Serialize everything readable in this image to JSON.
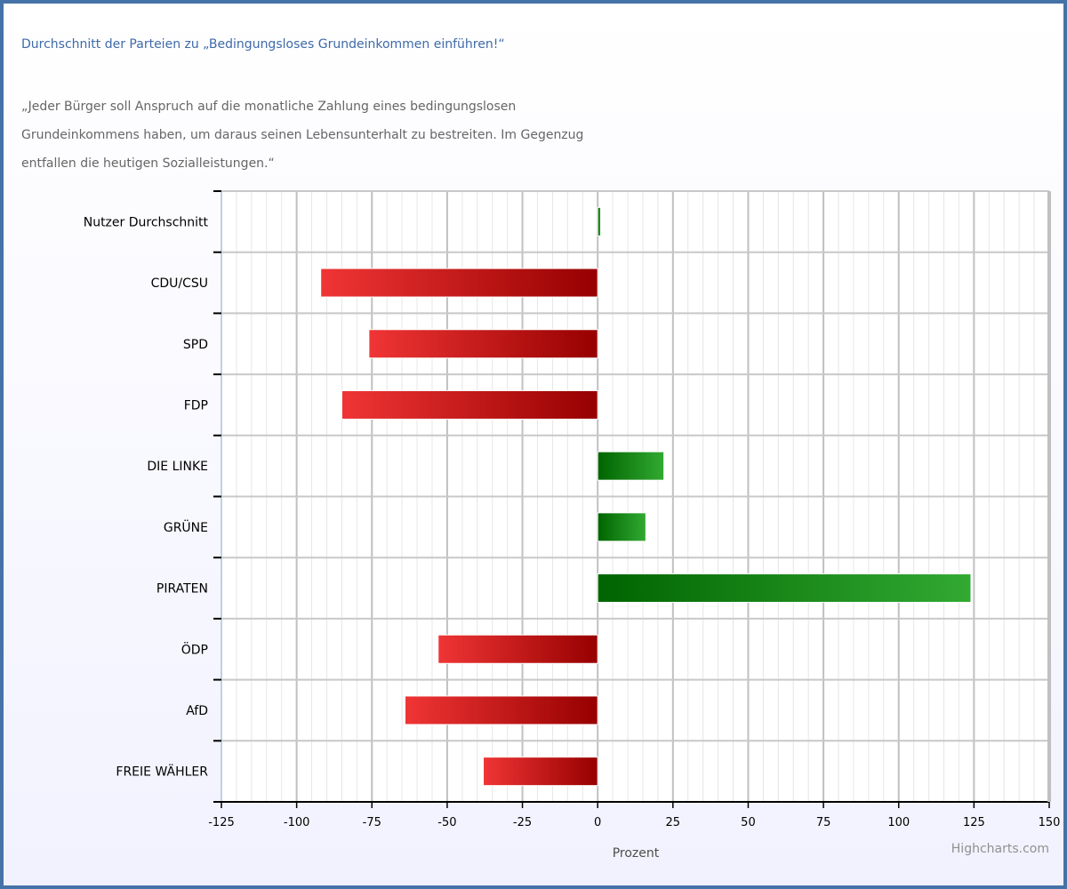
{
  "title": "Durchschnitt der Parteien zu „Bedingungsloses Grundeinkommen einführen!“",
  "subtitle": "„Jeder Bürger soll Anspruch auf die monatliche Zahlung eines bedingungslosen Grundeinkommens haben, um daraus seinen Lebensunterhalt zu bestreiten. Im Gegenzug entfallen die heutigen Sozialleistungen.“",
  "credits": "Highcharts.com",
  "colors": {
    "frame": "#4572a7",
    "title": "#3e6aa8",
    "negative_dark": "#960000",
    "negative_light": "#f03535",
    "positive_dark": "#006400",
    "positive_light": "#32aa32"
  },
  "chart_data": {
    "type": "bar",
    "orientation": "horizontal",
    "categories": [
      "Nutzer Durchschnitt",
      "CDU/CSU",
      "SPD",
      "FDP",
      "DIE LINKE",
      "GRÜNE",
      "PIRATEN",
      "ÖDP",
      "AfD",
      "FREIE WÄHLER"
    ],
    "values": [
      1,
      -92,
      -76,
      -85,
      22,
      16,
      124,
      -53,
      -64,
      -38
    ],
    "xlabel": "Prozent",
    "xlim": [
      -125,
      150
    ],
    "xticks": [
      -125,
      -100,
      -75,
      -50,
      -25,
      0,
      25,
      50,
      75,
      100,
      125,
      150
    ],
    "minor_step": 5,
    "grid": true,
    "legend": "none"
  }
}
